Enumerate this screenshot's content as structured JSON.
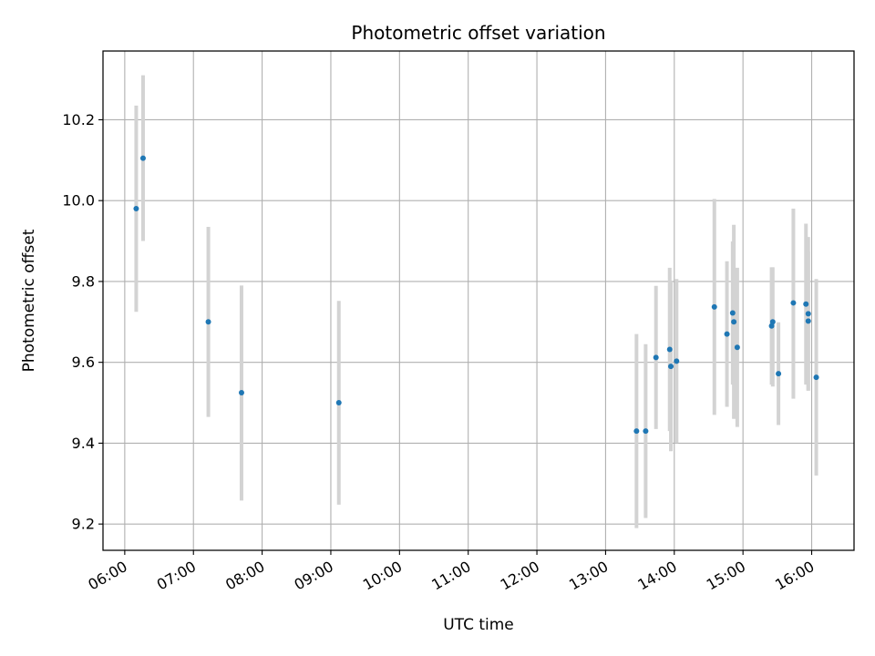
{
  "chart_data": {
    "type": "scatter",
    "title": "Photometric offset variation",
    "xlabel": "UTC time",
    "ylabel": "Photometric offset",
    "x_unit": "time-of-day",
    "xlim": [
      "05:41",
      "16:37"
    ],
    "ylim": [
      9.135,
      10.37
    ],
    "x_ticks": [
      "06:00",
      "07:00",
      "08:00",
      "09:00",
      "10:00",
      "11:00",
      "12:00",
      "13:00",
      "14:00",
      "15:00",
      "16:00"
    ],
    "y_ticks": [
      9.2,
      9.4,
      9.6,
      9.8,
      10.0,
      10.2
    ],
    "grid": true,
    "legend": "none",
    "marker_color": "#1f77b4",
    "errorbar_color": "#d3d3d3",
    "series": [
      {
        "points": [
          {
            "x": "06:10",
            "y": 9.98,
            "yerr_low": 9.725,
            "yerr_high": 10.235
          },
          {
            "x": "06:16",
            "y": 10.105,
            "yerr_low": 9.9,
            "yerr_high": 10.31
          },
          {
            "x": "07:13",
            "y": 9.7,
            "yerr_low": 9.465,
            "yerr_high": 9.935
          },
          {
            "x": "07:42",
            "y": 9.525,
            "yerr_low": 9.258,
            "yerr_high": 9.79
          },
          {
            "x": "09:07",
            "y": 9.5,
            "yerr_low": 9.248,
            "yerr_high": 9.752
          },
          {
            "x": "13:27",
            "y": 9.43,
            "yerr_low": 9.19,
            "yerr_high": 9.67
          },
          {
            "x": "13:35",
            "y": 9.43,
            "yerr_low": 9.215,
            "yerr_high": 9.645
          },
          {
            "x": "13:44",
            "y": 9.612,
            "yerr_low": 9.435,
            "yerr_high": 9.789
          },
          {
            "x": "13:56",
            "y": 9.632,
            "yerr_low": 9.43,
            "yerr_high": 9.834
          },
          {
            "x": "13:57",
            "y": 9.59,
            "yerr_low": 9.38,
            "yerr_high": 9.8
          },
          {
            "x": "14:02",
            "y": 9.603,
            "yerr_low": 9.4,
            "yerr_high": 9.806
          },
          {
            "x": "14:35",
            "y": 9.737,
            "yerr_low": 9.47,
            "yerr_high": 10.004
          },
          {
            "x": "14:46",
            "y": 9.67,
            "yerr_low": 9.49,
            "yerr_high": 9.85
          },
          {
            "x": "14:51",
            "y": 9.722,
            "yerr_low": 9.545,
            "yerr_high": 9.899
          },
          {
            "x": "14:52",
            "y": 9.7,
            "yerr_low": 9.46,
            "yerr_high": 9.94
          },
          {
            "x": "14:55",
            "y": 9.637,
            "yerr_low": 9.44,
            "yerr_high": 9.834
          },
          {
            "x": "15:25",
            "y": 9.69,
            "yerr_low": 9.545,
            "yerr_high": 9.835
          },
          {
            "x": "15:26",
            "y": 9.7,
            "yerr_low": 9.54,
            "yerr_high": 9.835
          },
          {
            "x": "15:31",
            "y": 9.572,
            "yerr_low": 9.445,
            "yerr_high": 9.699
          },
          {
            "x": "15:44",
            "y": 9.747,
            "yerr_low": 9.51,
            "yerr_high": 9.98
          },
          {
            "x": "15:55",
            "y": 9.744,
            "yerr_low": 9.545,
            "yerr_high": 9.943
          },
          {
            "x": "15:57",
            "y": 9.72,
            "yerr_low": 9.53,
            "yerr_high": 9.91
          },
          {
            "x": "15:57",
            "y": 9.702,
            "yerr_low": 9.53,
            "yerr_high": 9.874
          },
          {
            "x": "16:04",
            "y": 9.563,
            "yerr_low": 9.32,
            "yerr_high": 9.806
          }
        ]
      }
    ]
  }
}
